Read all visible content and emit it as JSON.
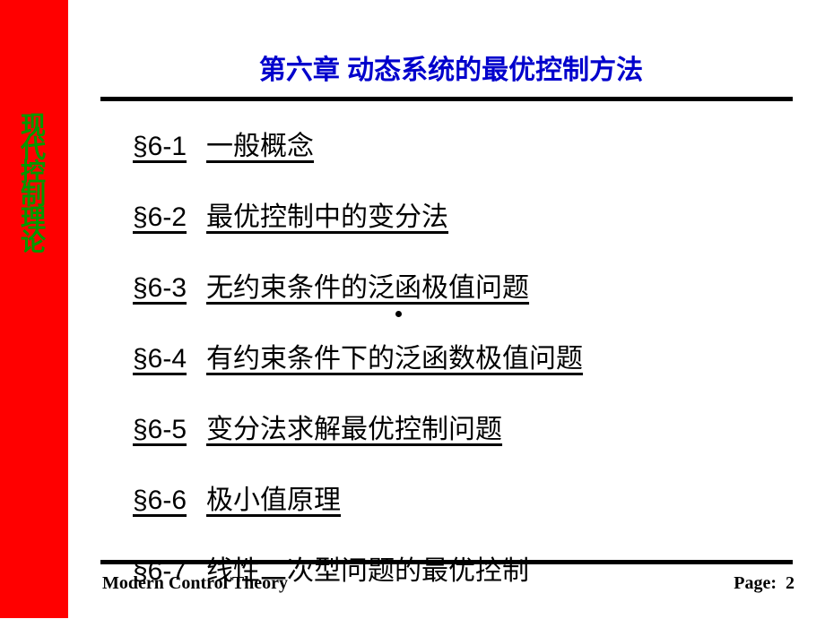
{
  "sidebar": {
    "vertical_text": "现代控制理论",
    "bg_color": "#ff0000",
    "text_color": "#009900"
  },
  "header": {
    "chapter_title": "第六章  动态系统的最优控制方法",
    "title_color": "#0000cc"
  },
  "toc": {
    "items": [
      {
        "num": "§6-1",
        "title": "一般概念"
      },
      {
        "num": "§6-2",
        "title": "最优控制中的变分法"
      },
      {
        "num": "§6-3",
        "title": "无约束条件的泛函极值问题"
      },
      {
        "num": "§6-4",
        "title": "有约束条件下的泛函数极值问题"
      },
      {
        "num": "§6-5",
        "title": "变分法求解最优控制问题"
      },
      {
        "num": "§6-6",
        "title": "极小值原理"
      },
      {
        "num": "§6-7",
        "title": "线性二次型问题的最优控制"
      }
    ]
  },
  "footer": {
    "left": "Modern Control Theory",
    "right_label": "Page:",
    "page_number": "2"
  },
  "colors": {
    "rule": "#000000",
    "background": "#ffffff"
  }
}
